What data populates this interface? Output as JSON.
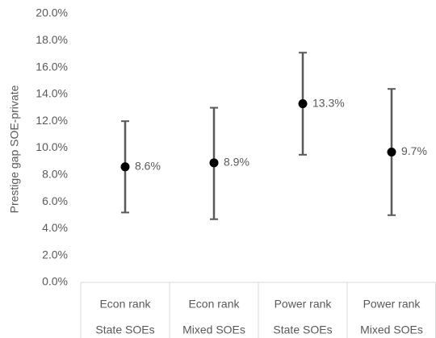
{
  "chart_data": {
    "type": "errorbar",
    "y_label": "Prestige gap SOE-private",
    "categories": [
      [
        "Econ rank",
        "State SOEs"
      ],
      [
        "Econ rank",
        "Mixed SOEs"
      ],
      [
        "Power rank",
        "State SOEs"
      ],
      [
        "Power rank",
        "Mixed SOEs"
      ]
    ],
    "series": [
      {
        "color": "#000000",
        "whisker_color": "#595959",
        "values": [
          8.6,
          8.9,
          13.3,
          9.7
        ],
        "value_labels": [
          "8.6%",
          "8.9%",
          "13.3%",
          "9.7%"
        ],
        "lower": [
          5.2,
          4.7,
          9.5,
          5.0
        ],
        "upper": [
          12.0,
          13.0,
          17.1,
          14.4
        ]
      }
    ],
    "ylim": [
      0,
      20
    ],
    "yticks": [
      {
        "value": 0,
        "label": "0.0%"
      },
      {
        "value": 2,
        "label": "2.0%"
      },
      {
        "value": 4,
        "label": "4.0%"
      },
      {
        "value": 6,
        "label": "6.0%"
      },
      {
        "value": 8,
        "label": "8.0%"
      },
      {
        "value": 10,
        "label": "10.0%"
      },
      {
        "value": 12,
        "label": "12.0%"
      },
      {
        "value": 14,
        "label": "14.0%"
      },
      {
        "value": 16,
        "label": "16.0%"
      },
      {
        "value": 18,
        "label": "18.0%"
      },
      {
        "value": 20,
        "label": "20.0%"
      }
    ],
    "grid": false
  }
}
